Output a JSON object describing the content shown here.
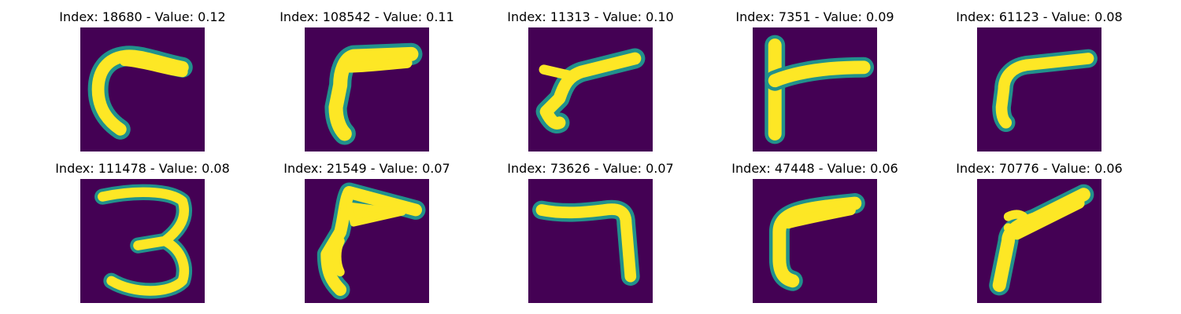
{
  "figure": {
    "colormap": "viridis",
    "background_color": "#440154",
    "foreground_color": "#fde725",
    "edge_color": "#21918c",
    "panels": [
      {
        "title": "Index: 18680 - Value: 0.12",
        "index": 18680,
        "value": 0.12,
        "content": "curved stroke (hook-like, resembles a 'C' / 'r')"
      },
      {
        "title": "Index: 108542 - Value: 0.11",
        "index": 108542,
        "value": 0.11,
        "content": "angled stroke resembling a 'r' / '7'"
      },
      {
        "title": "Index: 11313 - Value: 0.10",
        "index": 11313,
        "value": 0.1,
        "content": "angled stroke resembling a 'r' / '7'"
      },
      {
        "title": "Index: 7351 - Value: 0.09",
        "index": 7351,
        "value": 0.09,
        "content": "vertical line with rightward bar (resembles 'r' / 'F')"
      },
      {
        "title": "Index: 61123 - Value: 0.08",
        "index": 61123,
        "value": 0.08,
        "content": "angled stroke resembling a 'r' / '7'"
      },
      {
        "title": "Index: 111478 - Value: 0.08",
        "index": 111478,
        "value": 0.08,
        "content": "digit '3'"
      },
      {
        "title": "Index: 21549 - Value: 0.07",
        "index": 21549,
        "value": 0.07,
        "content": "angled stroke resembling a 'r' / '7'"
      },
      {
        "title": "Index: 73626 - Value: 0.07",
        "index": 73626,
        "value": 0.07,
        "content": "bent stroke resembling a '7'"
      },
      {
        "title": "Index: 47448 - Value: 0.06",
        "index": 47448,
        "value": 0.06,
        "content": "angled stroke resembling a 'r' / '7'"
      },
      {
        "title": "Index: 70776 - Value: 0.06",
        "index": 70776,
        "value": 0.06,
        "content": "angled stroke resembling a 'r' / '7'"
      }
    ]
  }
}
